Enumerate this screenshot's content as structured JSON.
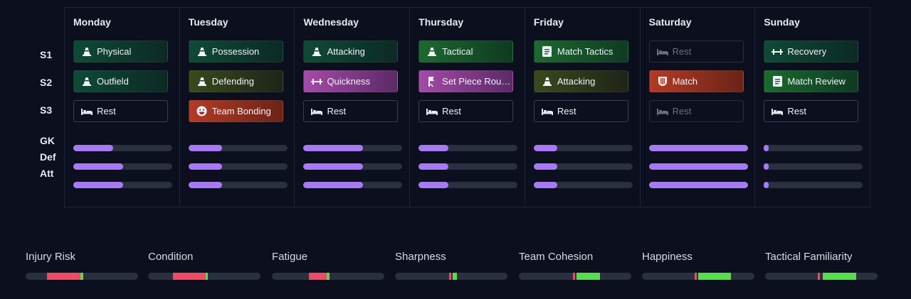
{
  "row_labels": {
    "s1": "S1",
    "s2": "S2",
    "s3": "S3",
    "gk": "GK",
    "def": "Def",
    "att": "Att"
  },
  "days": [
    {
      "name": "Monday",
      "sessions": [
        {
          "label": "Physical",
          "icon": "cone-icon",
          "style": "green"
        },
        {
          "label": "Outfield",
          "icon": "cone-icon",
          "style": "green"
        },
        {
          "label": "Rest",
          "icon": "bed-icon",
          "style": "rest"
        }
      ],
      "load": {
        "gk": 0.4,
        "def": 0.5,
        "att": 0.5
      }
    },
    {
      "name": "Tuesday",
      "sessions": [
        {
          "label": "Possession",
          "icon": "cone-icon",
          "style": "green"
        },
        {
          "label": "Defending",
          "icon": "cone-icon",
          "style": "olive"
        },
        {
          "label": "Team Bonding",
          "icon": "smiley-icon",
          "style": "red"
        }
      ],
      "load": {
        "gk": 0.34,
        "def": 0.34,
        "att": 0.34
      }
    },
    {
      "name": "Wednesday",
      "sessions": [
        {
          "label": "Attacking",
          "icon": "cone-icon",
          "style": "green"
        },
        {
          "label": "Quickness",
          "icon": "dumbbell-icon",
          "style": "pink"
        },
        {
          "label": "Rest",
          "icon": "bed-icon",
          "style": "rest"
        }
      ],
      "load": {
        "gk": 0.6,
        "def": 0.6,
        "att": 0.6
      }
    },
    {
      "name": "Thursday",
      "sessions": [
        {
          "label": "Tactical",
          "icon": "cone-icon",
          "style": "bright"
        },
        {
          "label": "Set Piece Routi...",
          "icon": "corner-flag-icon",
          "style": "pink"
        },
        {
          "label": "Rest",
          "icon": "bed-icon",
          "style": "rest"
        }
      ],
      "load": {
        "gk": 0.3,
        "def": 0.3,
        "att": 0.3
      }
    },
    {
      "name": "Friday",
      "sessions": [
        {
          "label": "Match Tactics",
          "icon": "clipboard-icon",
          "style": "bright"
        },
        {
          "label": "Attacking",
          "icon": "cone-icon",
          "style": "olive"
        },
        {
          "label": "Rest",
          "icon": "bed-icon",
          "style": "rest"
        }
      ],
      "load": {
        "gk": 0.24,
        "def": 0.24,
        "att": 0.24
      }
    },
    {
      "name": "Saturday",
      "sessions": [
        {
          "label": "Rest",
          "icon": "bed-icon",
          "style": "rest-dim"
        },
        {
          "label": "Match",
          "icon": "shield-icon",
          "style": "red"
        },
        {
          "label": "Rest",
          "icon": "bed-icon",
          "style": "rest-dim"
        }
      ],
      "load": {
        "gk": 1.0,
        "def": 1.0,
        "att": 1.0
      }
    },
    {
      "name": "Sunday",
      "sessions": [
        {
          "label": "Recovery",
          "icon": "dumbbell-icon",
          "style": "green"
        },
        {
          "label": "Match Review",
          "icon": "clipboard-icon",
          "style": "bright"
        },
        {
          "label": "Rest",
          "icon": "bed-icon",
          "style": "rest"
        }
      ],
      "load": {
        "gk": 0.05,
        "def": 0.05,
        "att": 0.05
      }
    }
  ],
  "metrics": [
    {
      "label": "Injury Risk",
      "neg_start": 0.19,
      "neg_end": 0.49,
      "pos_start": 0.49,
      "pos_end": 0.51,
      "marker": 0.5,
      "marker_color": "#55de4a"
    },
    {
      "label": "Condition",
      "neg_start": 0.22,
      "neg_end": 0.51,
      "pos_start": 0.51,
      "pos_end": 0.53,
      "marker": 0.52,
      "marker_color": "#55de4a"
    },
    {
      "label": "Fatigue",
      "neg_start": 0.33,
      "neg_end": 0.49,
      "pos_start": 0.49,
      "pos_end": 0.51,
      "marker": 0.5,
      "marker_color": "#55de4a"
    },
    {
      "label": "Sharpness",
      "neg_start": 0.48,
      "neg_end": 0.5,
      "pos_start": 0.51,
      "pos_end": 0.55,
      "marker": 0.48,
      "marker_color": "#f04a64"
    },
    {
      "label": "Team Cohesion",
      "neg_start": 0.48,
      "neg_end": 0.5,
      "pos_start": 0.51,
      "pos_end": 0.72,
      "marker": 0.48,
      "marker_color": "#f04a64"
    },
    {
      "label": "Happiness",
      "neg_start": 0.47,
      "neg_end": 0.49,
      "pos_start": 0.5,
      "pos_end": 0.79,
      "marker": 0.47,
      "marker_color": "#f04a64"
    },
    {
      "label": "Tactical Familiarity",
      "neg_start": 0.47,
      "neg_end": 0.49,
      "pos_start": 0.51,
      "pos_end": 0.81,
      "marker": 0.47,
      "marker_color": "#f04a64"
    }
  ],
  "colors": {
    "background": "#0b0f1e",
    "load_fill": "#a77af4",
    "negative": "#f04a64",
    "positive": "#55de4a"
  }
}
